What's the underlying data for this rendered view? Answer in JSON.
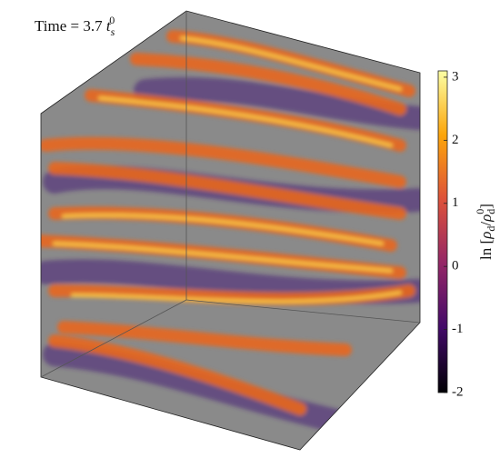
{
  "annotation": [
    "Time = 3.7",
    "t",
    "s",
    "0"
  ],
  "colorbar": {
    "label": [
      "ln [",
      "ρ",
      "d",
      "/",
      "ρ",
      "d",
      "0",
      "]"
    ],
    "lim": [
      -2,
      3.1
    ],
    "ticks": [
      -2,
      -1,
      0,
      1,
      2,
      3
    ]
  }
}
